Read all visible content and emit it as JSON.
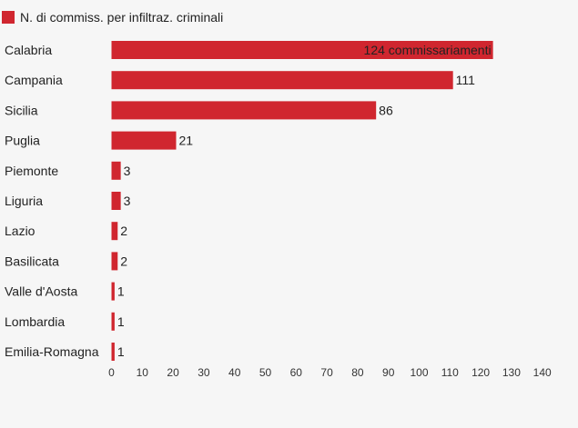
{
  "chart_data": {
    "type": "bar",
    "orientation": "horizontal",
    "legend": {
      "position": "top-left",
      "label": "N. di commiss. per infiltraz. criminali",
      "color": "#d0262f"
    },
    "series": [
      {
        "name": "N. di commiss. per infiltraz. criminali",
        "color": "#d0262f",
        "values": [
          124,
          111,
          86,
          21,
          3,
          3,
          2,
          2,
          1,
          1,
          1
        ]
      }
    ],
    "categories": [
      "Calabria",
      "Campania",
      "Sicilia",
      "Puglia",
      "Piemonte",
      "Liguria",
      "Lazio",
      "Basilicata",
      "Valle d'Aosta",
      "Lombardia",
      "Emilia-Romagna"
    ],
    "value_labels": [
      "124 commissariamenti",
      "111",
      "86",
      "21",
      "3",
      "3",
      "2",
      "2",
      "1",
      "1",
      "1"
    ],
    "xlim": [
      0,
      140
    ],
    "xticks": [
      0,
      10,
      20,
      30,
      40,
      50,
      60,
      70,
      80,
      90,
      100,
      110,
      120,
      130,
      140
    ],
    "grid": false,
    "title": "",
    "xlabel": "",
    "ylabel": ""
  }
}
